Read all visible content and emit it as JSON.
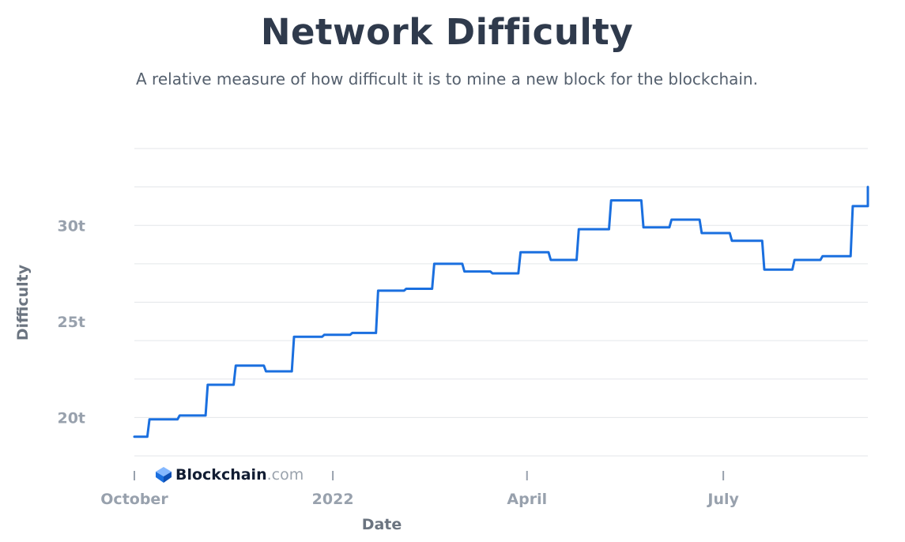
{
  "title": "Network Difficulty",
  "subtitle": "A relative measure of how difficult it is to mine a new block for the blockchain.",
  "brand": {
    "name": "Blockchain",
    "suffix": ".com",
    "icon": "blockchain-logo-icon"
  },
  "colors": {
    "line": "#1a6fdf",
    "grid": "#e3e6ea",
    "axis_text": "#98a1ad",
    "title": "#2f3a4c"
  },
  "chart_data": {
    "type": "line",
    "title": "Network Difficulty",
    "xlabel": "Date",
    "ylabel": "Difficulty",
    "x_ticks": [
      {
        "label": "October",
        "date": "2021-10-01"
      },
      {
        "label": "2022",
        "date": "2022-01-01"
      },
      {
        "label": "April",
        "date": "2022-04-01"
      },
      {
        "label": "July",
        "date": "2022-07-01"
      }
    ],
    "y_ticks": [
      {
        "label": "20t",
        "value": 20
      },
      {
        "label": "25t",
        "value": 25
      },
      {
        "label": "30t",
        "value": 30
      }
    ],
    "xlim": [
      "2021-10-01",
      "2022-09-06"
    ],
    "ylim": [
      18,
      34
    ],
    "y_unit": "trillion",
    "grid": true,
    "series": [
      {
        "points": [
          [
            "2021-10-01",
            19.0
          ],
          [
            "2021-10-07",
            19.0
          ],
          [
            "2021-10-08",
            19.9
          ],
          [
            "2021-10-21",
            19.9
          ],
          [
            "2021-10-22",
            20.1
          ],
          [
            "2021-11-03",
            20.1
          ],
          [
            "2021-11-04",
            21.7
          ],
          [
            "2021-11-16",
            21.7
          ],
          [
            "2021-11-17",
            22.7
          ],
          [
            "2021-11-30",
            22.7
          ],
          [
            "2021-12-01",
            22.4
          ],
          [
            "2021-12-13",
            22.4
          ],
          [
            "2021-12-14",
            24.2
          ],
          [
            "2021-12-27",
            24.2
          ],
          [
            "2021-12-28",
            24.3
          ],
          [
            "2022-01-09",
            24.3
          ],
          [
            "2022-01-10",
            24.4
          ],
          [
            "2022-01-21",
            24.4
          ],
          [
            "2022-01-22",
            26.6
          ],
          [
            "2022-02-03",
            26.6
          ],
          [
            "2022-02-04",
            26.7
          ],
          [
            "2022-02-16",
            26.7
          ],
          [
            "2022-02-17",
            28.0
          ],
          [
            "2022-03-02",
            28.0
          ],
          [
            "2022-03-03",
            27.6
          ],
          [
            "2022-03-15",
            27.6
          ],
          [
            "2022-03-16",
            27.5
          ],
          [
            "2022-03-28",
            27.5
          ],
          [
            "2022-03-29",
            28.6
          ],
          [
            "2022-04-11",
            28.6
          ],
          [
            "2022-04-12",
            28.2
          ],
          [
            "2022-04-24",
            28.2
          ],
          [
            "2022-04-25",
            29.8
          ],
          [
            "2022-05-09",
            29.8
          ],
          [
            "2022-05-10",
            31.3
          ],
          [
            "2022-05-24",
            31.3
          ],
          [
            "2022-05-25",
            29.9
          ],
          [
            "2022-06-06",
            29.9
          ],
          [
            "2022-06-07",
            30.3
          ],
          [
            "2022-06-20",
            30.3
          ],
          [
            "2022-06-21",
            29.6
          ],
          [
            "2022-07-04",
            29.6
          ],
          [
            "2022-07-05",
            29.2
          ],
          [
            "2022-07-19",
            29.2
          ],
          [
            "2022-07-20",
            27.7
          ],
          [
            "2022-08-02",
            27.7
          ],
          [
            "2022-08-03",
            28.2
          ],
          [
            "2022-08-15",
            28.2
          ],
          [
            "2022-08-16",
            28.4
          ],
          [
            "2022-08-29",
            28.4
          ],
          [
            "2022-08-30",
            31.0
          ],
          [
            "2022-09-12",
            31.0
          ],
          [
            "2022-09-13",
            32.0
          ],
          [
            "2022-09-26",
            32.0
          ]
        ]
      }
    ]
  }
}
